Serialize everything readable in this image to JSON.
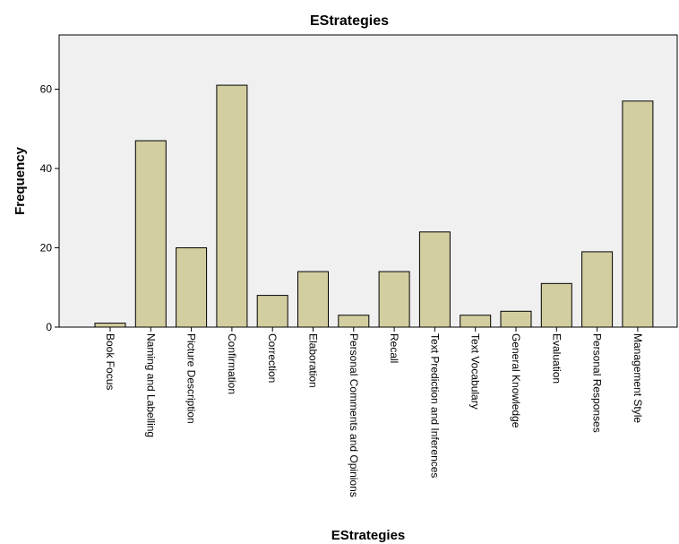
{
  "chart_data": {
    "type": "bar",
    "title": "EStrategies",
    "xlabel": "EStrategies",
    "ylabel": "Frequency",
    "categories": [
      "Book Focus",
      "Naming and Labelling",
      "Picture Description",
      "Confirmation",
      "Correction",
      "Elaboration",
      "Personal Comments and Opinions",
      "Recall",
      "Text Prediction and Inferences",
      "Text Vocabulary",
      "General Knowledge",
      "Evaluation",
      "Personal Responses",
      "Management Style"
    ],
    "values": [
      1,
      47,
      20,
      61,
      8,
      14,
      3,
      14,
      24,
      3,
      4,
      11,
      19,
      57
    ],
    "ylim": [
      0,
      74
    ],
    "yticks": [
      0,
      20,
      40,
      60
    ],
    "grid": false,
    "legend": "none",
    "colors": {
      "bar_fill": "#d3cea0",
      "bar_stroke": "#000000",
      "plot_background": "#f0f0f0"
    }
  }
}
